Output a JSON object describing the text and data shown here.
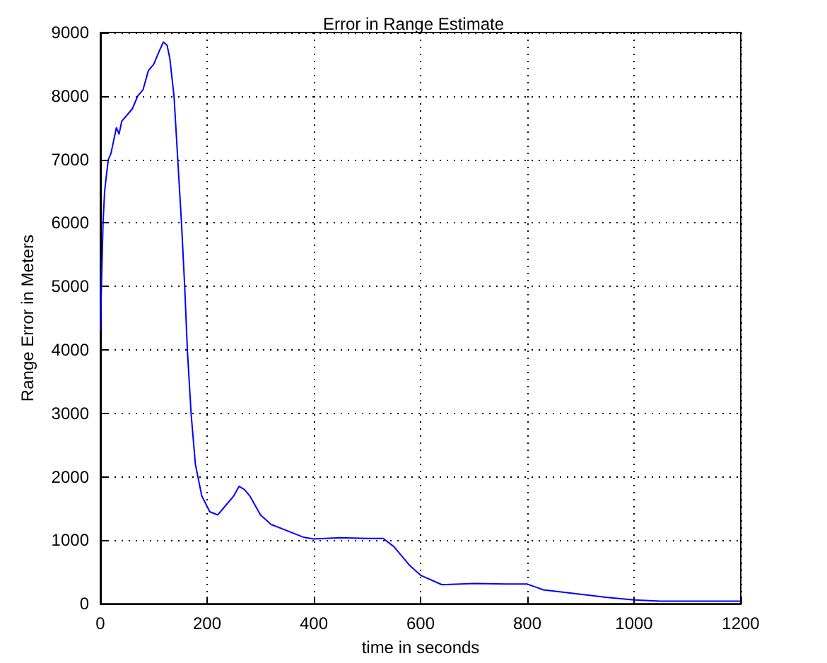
{
  "chart_data": {
    "type": "line",
    "title": "Error in Range Estimate",
    "xlabel": "time in seconds",
    "ylabel": "Range Error in Meters",
    "x": [
      0,
      2,
      5,
      8,
      12,
      15,
      20,
      25,
      30,
      35,
      40,
      50,
      60,
      70,
      80,
      90,
      100,
      110,
      118,
      125,
      130,
      138,
      145,
      152,
      158,
      163,
      170,
      178,
      190,
      205,
      220,
      235,
      250,
      260,
      270,
      280,
      300,
      320,
      350,
      380,
      400,
      450,
      500,
      530,
      550,
      580,
      600,
      640,
      700,
      760,
      800,
      830,
      900,
      950,
      1000,
      1050,
      1200
    ],
    "series": [
      {
        "color": "#0000ff",
        "values": [
          4300,
          5000,
          6000,
          6500,
          6800,
          7000,
          7100,
          7300,
          7500,
          7400,
          7600,
          7700,
          7800,
          8000,
          8100,
          8400,
          8500,
          8700,
          8850,
          8800,
          8600,
          8000,
          7000,
          6000,
          5000,
          4000,
          3000,
          2200,
          1700,
          1450,
          1400,
          1550,
          1700,
          1850,
          1800,
          1700,
          1400,
          1250,
          1150,
          1050,
          1020,
          1040,
          1030,
          1030,
          900,
          600,
          450,
          300,
          320,
          310,
          310,
          220,
          150,
          100,
          60,
          40,
          40
        ]
      }
    ],
    "xlim": [
      0,
      1200
    ],
    "xticks": [
      0,
      200,
      400,
      600,
      800,
      1000,
      1200
    ],
    "ylim": [
      0,
      9000
    ],
    "yticks": [
      0,
      1000,
      2000,
      3000,
      4000,
      5000,
      6000,
      7000,
      8000,
      9000
    ],
    "grid": true,
    "line_style": "solid",
    "marker": "none"
  }
}
